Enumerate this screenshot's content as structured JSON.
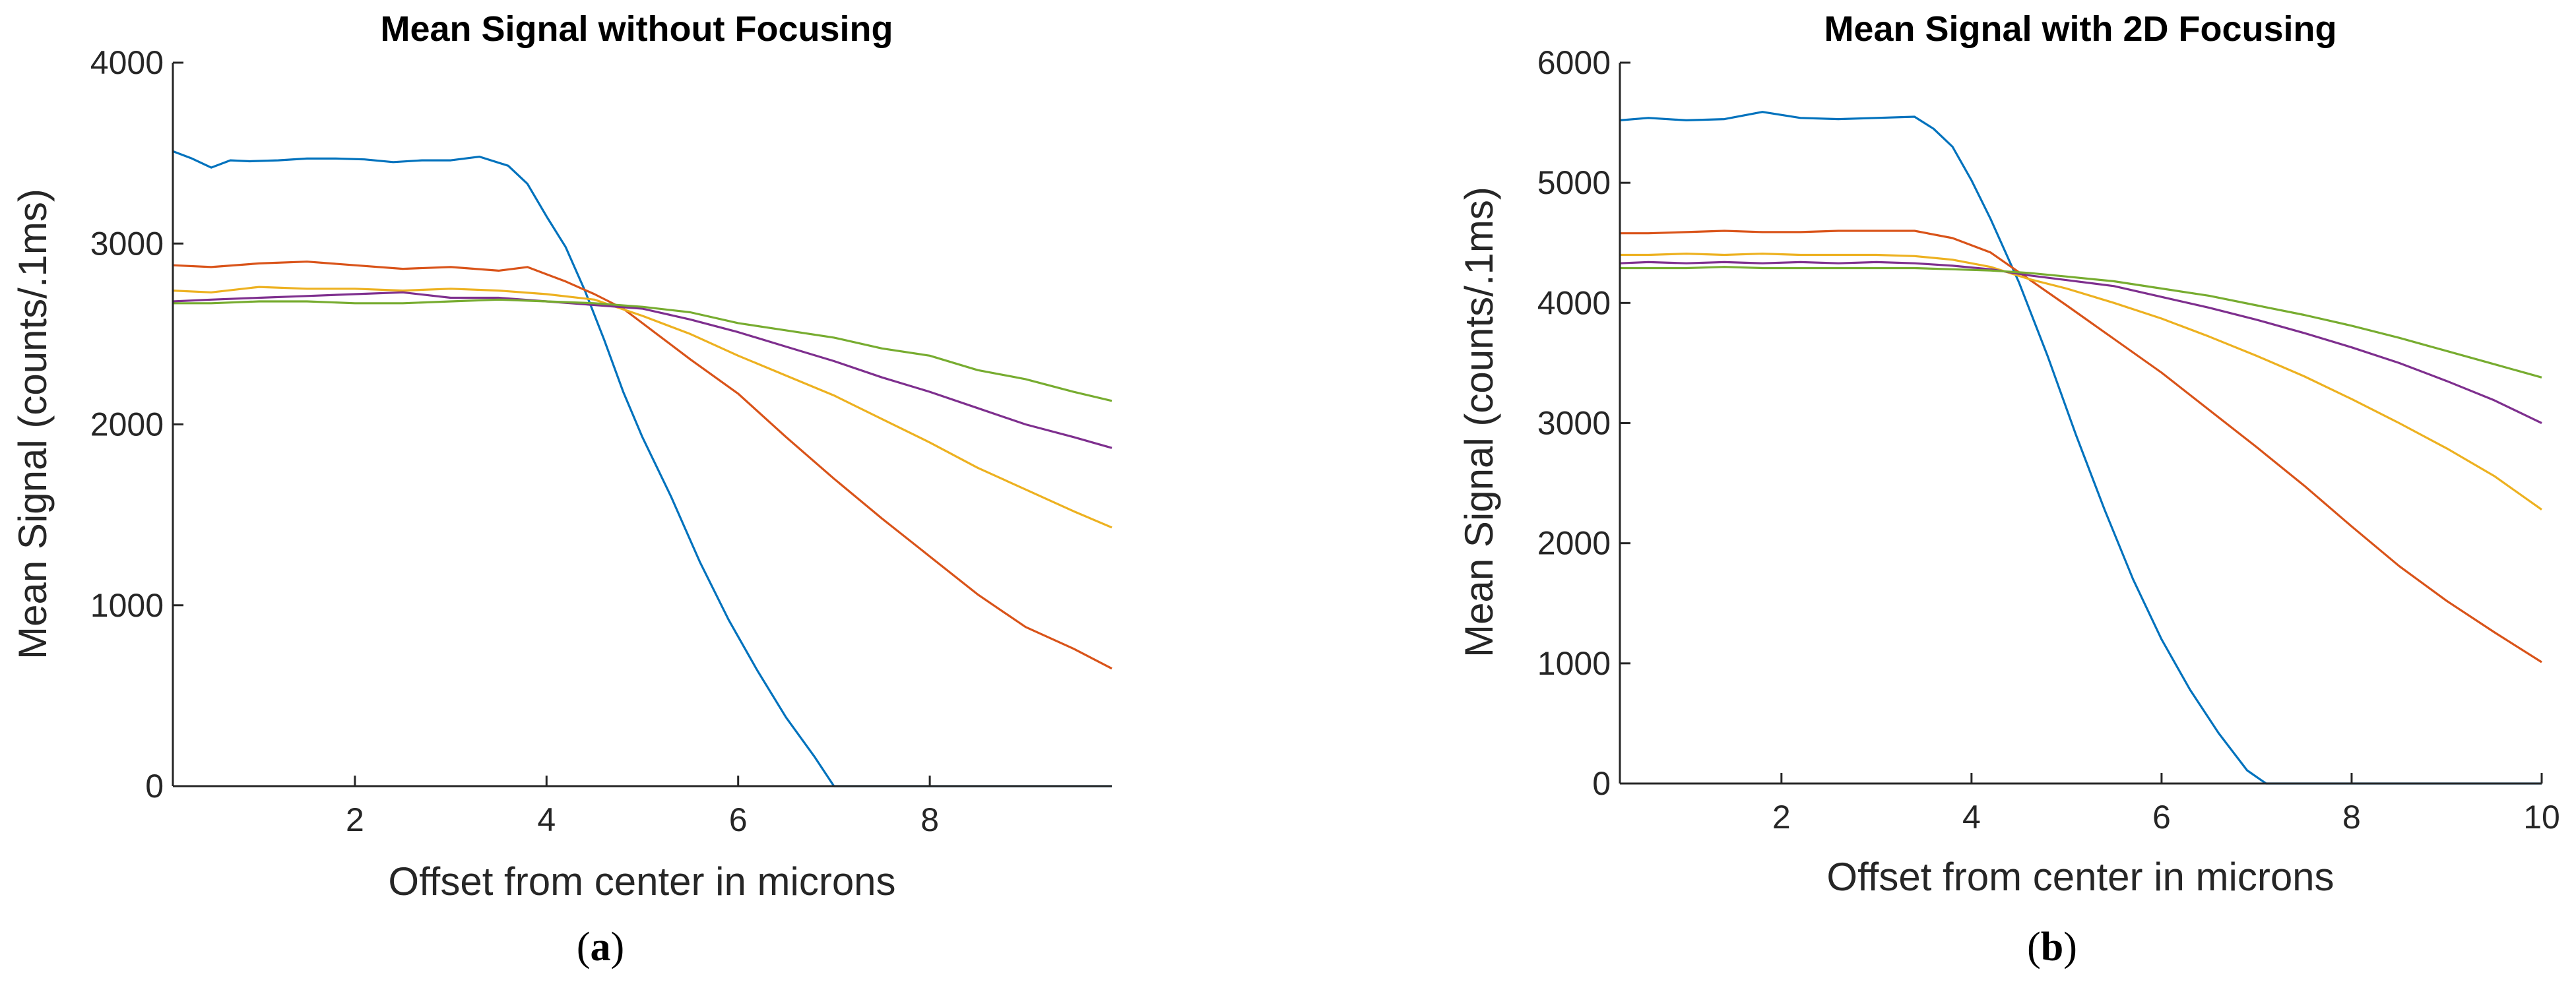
{
  "chart_data": [
    {
      "type": "line",
      "title": "Mean Signal without Focusing",
      "xlabel": "Offset from center in microns",
      "ylabel": "Mean Signal (counts/.1ms)",
      "xlim": [
        0.1,
        9.9
      ],
      "ylim": [
        0,
        4000
      ],
      "xticks": [
        2,
        4,
        6,
        8
      ],
      "yticks": [
        0,
        1000,
        2000,
        3000,
        4000
      ],
      "panel_label": "a",
      "grid": false,
      "series": [
        {
          "name": "blue",
          "color": "#0072BD",
          "x": [
            0.1,
            0.3,
            0.5,
            0.7,
            0.9,
            1.2,
            1.5,
            1.8,
            2.1,
            2.4,
            2.7,
            3.0,
            3.3,
            3.6,
            3.8,
            4.0,
            4.2,
            4.4,
            4.6,
            4.8,
            5.0,
            5.3,
            5.6,
            5.9,
            6.2,
            6.5,
            6.8,
            7.0,
            7.2,
            7.5,
            8.0,
            9.0,
            9.9
          ],
          "y": [
            3510,
            3470,
            3420,
            3460,
            3455,
            3460,
            3470,
            3470,
            3465,
            3450,
            3460,
            3460,
            3480,
            3430,
            3330,
            3150,
            2980,
            2740,
            2470,
            2180,
            1930,
            1600,
            1240,
            920,
            640,
            380,
            160,
            0,
            0,
            0,
            0,
            0,
            0
          ]
        },
        {
          "name": "orange",
          "color": "#D95319",
          "x": [
            0.1,
            0.5,
            1.0,
            1.5,
            2.0,
            2.5,
            3.0,
            3.5,
            3.8,
            4.0,
            4.2,
            4.5,
            4.8,
            5.0,
            5.5,
            6.0,
            6.5,
            7.0,
            7.5,
            8.0,
            8.5,
            9.0,
            9.5,
            9.9
          ],
          "y": [
            2880,
            2870,
            2890,
            2900,
            2880,
            2860,
            2870,
            2850,
            2870,
            2830,
            2790,
            2720,
            2640,
            2560,
            2360,
            2170,
            1930,
            1700,
            1480,
            1270,
            1060,
            880,
            760,
            650
          ]
        },
        {
          "name": "yellow",
          "color": "#EDB120",
          "x": [
            0.1,
            0.5,
            1.0,
            1.5,
            2.0,
            2.5,
            3.0,
            3.5,
            4.0,
            4.5,
            5.0,
            5.5,
            6.0,
            6.5,
            7.0,
            7.5,
            8.0,
            8.5,
            9.0,
            9.5,
            9.9
          ],
          "y": [
            2740,
            2730,
            2760,
            2750,
            2750,
            2740,
            2750,
            2740,
            2720,
            2690,
            2600,
            2500,
            2380,
            2270,
            2160,
            2030,
            1900,
            1760,
            1640,
            1520,
            1430
          ]
        },
        {
          "name": "purple",
          "color": "#7E2F8E",
          "x": [
            0.1,
            0.5,
            1.0,
            1.5,
            2.0,
            2.5,
            3.0,
            3.5,
            4.0,
            4.5,
            5.0,
            5.5,
            6.0,
            6.5,
            7.0,
            7.5,
            8.0,
            8.5,
            9.0,
            9.5,
            9.9
          ],
          "y": [
            2680,
            2690,
            2700,
            2710,
            2720,
            2730,
            2700,
            2700,
            2680,
            2660,
            2640,
            2580,
            2510,
            2430,
            2350,
            2260,
            2180,
            2090,
            2000,
            1930,
            1870
          ]
        },
        {
          "name": "green",
          "color": "#77AC30",
          "x": [
            0.1,
            0.5,
            1.0,
            1.5,
            2.0,
            2.5,
            3.0,
            3.5,
            4.0,
            4.5,
            5.0,
            5.5,
            6.0,
            6.5,
            7.0,
            7.5,
            8.0,
            8.5,
            9.0,
            9.5,
            9.9
          ],
          "y": [
            2670,
            2670,
            2680,
            2680,
            2670,
            2670,
            2680,
            2690,
            2680,
            2670,
            2650,
            2620,
            2560,
            2520,
            2480,
            2420,
            2380,
            2300,
            2250,
            2180,
            2130
          ]
        }
      ]
    },
    {
      "type": "line",
      "title": "Mean Signal with 2D Focusing",
      "xlabel": "Offset from center in microns",
      "ylabel": "Mean Signal (counts/.1ms)",
      "xlim": [
        0.3,
        10
      ],
      "ylim": [
        0,
        6000
      ],
      "xticks": [
        2,
        4,
        6,
        8,
        10
      ],
      "yticks": [
        0,
        1000,
        2000,
        3000,
        4000,
        5000,
        6000
      ],
      "panel_label": "b",
      "grid": false,
      "series": [
        {
          "name": "blue",
          "color": "#0072BD",
          "x": [
            0.3,
            0.6,
            1.0,
            1.4,
            1.8,
            2.2,
            2.6,
            3.0,
            3.4,
            3.6,
            3.8,
            4.0,
            4.2,
            4.5,
            4.8,
            5.1,
            5.4,
            5.7,
            6.0,
            6.3,
            6.6,
            6.9,
            7.1,
            7.2,
            7.5,
            8.0,
            9.0,
            10.0
          ],
          "y": [
            5520,
            5540,
            5520,
            5530,
            5590,
            5540,
            5530,
            5540,
            5550,
            5450,
            5300,
            5020,
            4700,
            4170,
            3560,
            2900,
            2280,
            1700,
            1200,
            780,
            420,
            110,
            0,
            0,
            0,
            0,
            0,
            0
          ]
        },
        {
          "name": "orange",
          "color": "#D95319",
          "x": [
            0.3,
            0.6,
            1.0,
            1.4,
            1.8,
            2.2,
            2.6,
            3.0,
            3.4,
            3.8,
            4.2,
            4.6,
            5.0,
            5.5,
            6.0,
            6.5,
            7.0,
            7.5,
            8.0,
            8.5,
            9.0,
            9.5,
            10.0
          ],
          "y": [
            4580,
            4580,
            4590,
            4600,
            4590,
            4590,
            4600,
            4600,
            4600,
            4540,
            4420,
            4200,
            3980,
            3700,
            3420,
            3110,
            2800,
            2480,
            2140,
            1810,
            1520,
            1260,
            1010
          ]
        },
        {
          "name": "yellow",
          "color": "#EDB120",
          "x": [
            0.3,
            0.6,
            1.0,
            1.4,
            1.8,
            2.2,
            2.6,
            3.0,
            3.4,
            3.8,
            4.2,
            4.6,
            5.0,
            5.5,
            6.0,
            6.5,
            7.0,
            7.5,
            8.0,
            8.5,
            9.0,
            9.5,
            10.0
          ],
          "y": [
            4400,
            4400,
            4410,
            4400,
            4410,
            4400,
            4400,
            4400,
            4390,
            4360,
            4300,
            4200,
            4120,
            4000,
            3870,
            3720,
            3560,
            3390,
            3200,
            3000,
            2790,
            2560,
            2280
          ]
        },
        {
          "name": "purple",
          "color": "#7E2F8E",
          "x": [
            0.3,
            0.6,
            1.0,
            1.4,
            1.8,
            2.2,
            2.6,
            3.0,
            3.4,
            3.8,
            4.2,
            4.6,
            5.0,
            5.5,
            6.0,
            6.5,
            7.0,
            7.5,
            8.0,
            8.5,
            9.0,
            9.5,
            10.0
          ],
          "y": [
            4330,
            4340,
            4330,
            4340,
            4330,
            4340,
            4330,
            4340,
            4330,
            4310,
            4280,
            4230,
            4190,
            4140,
            4050,
            3960,
            3860,
            3750,
            3630,
            3500,
            3350,
            3190,
            3000
          ]
        },
        {
          "name": "green",
          "color": "#77AC30",
          "x": [
            0.3,
            0.6,
            1.0,
            1.4,
            1.8,
            2.2,
            2.6,
            3.0,
            3.4,
            3.8,
            4.2,
            4.6,
            5.0,
            5.5,
            6.0,
            6.5,
            7.0,
            7.5,
            8.0,
            8.5,
            9.0,
            9.5,
            10.0
          ],
          "y": [
            4290,
            4290,
            4290,
            4300,
            4290,
            4290,
            4290,
            4290,
            4290,
            4280,
            4270,
            4250,
            4220,
            4180,
            4120,
            4060,
            3980,
            3900,
            3810,
            3710,
            3600,
            3490,
            3380
          ]
        }
      ]
    }
  ]
}
